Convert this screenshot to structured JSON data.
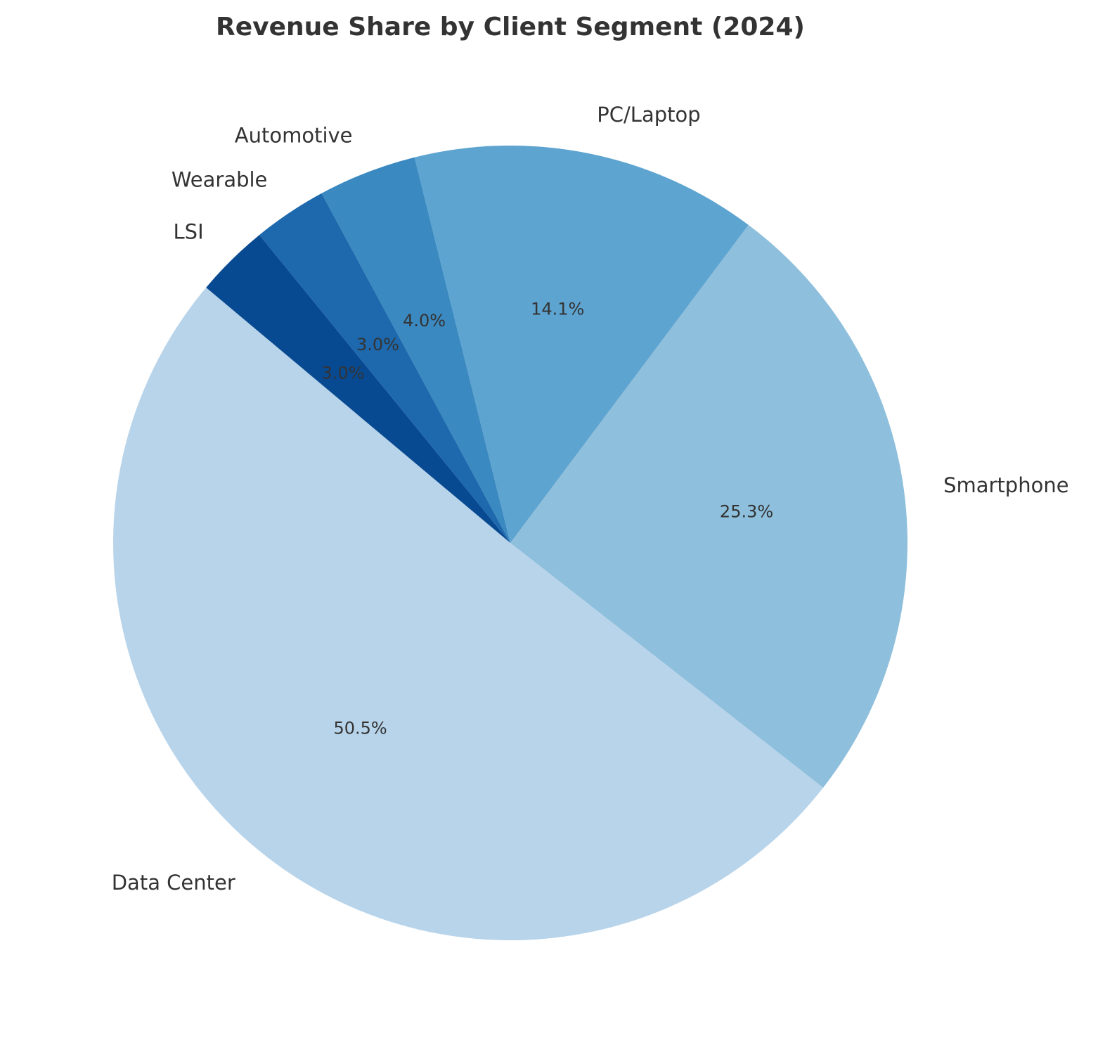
{
  "chart_data": {
    "type": "pie",
    "title": "Revenue Share by Client Segment (2024)",
    "categories": [
      "Data Center",
      "Smartphone",
      "PC/Laptop",
      "Automotive",
      "Wearable",
      "LSI"
    ],
    "values": [
      50.5,
      25.3,
      14.1,
      4.0,
      3.0,
      3.0
    ],
    "value_labels": [
      "50.5%",
      "25.3%",
      "14.1%",
      "4.0%",
      "3.0%",
      "3.0%"
    ],
    "colors": [
      "#b8d4ea",
      "#8ebfdc",
      "#5ea4d0",
      "#3a89c1",
      "#1e69ad",
      "#084a91"
    ],
    "start_angle_deg": 140,
    "direction": "counterclockwise",
    "legend": "none"
  }
}
